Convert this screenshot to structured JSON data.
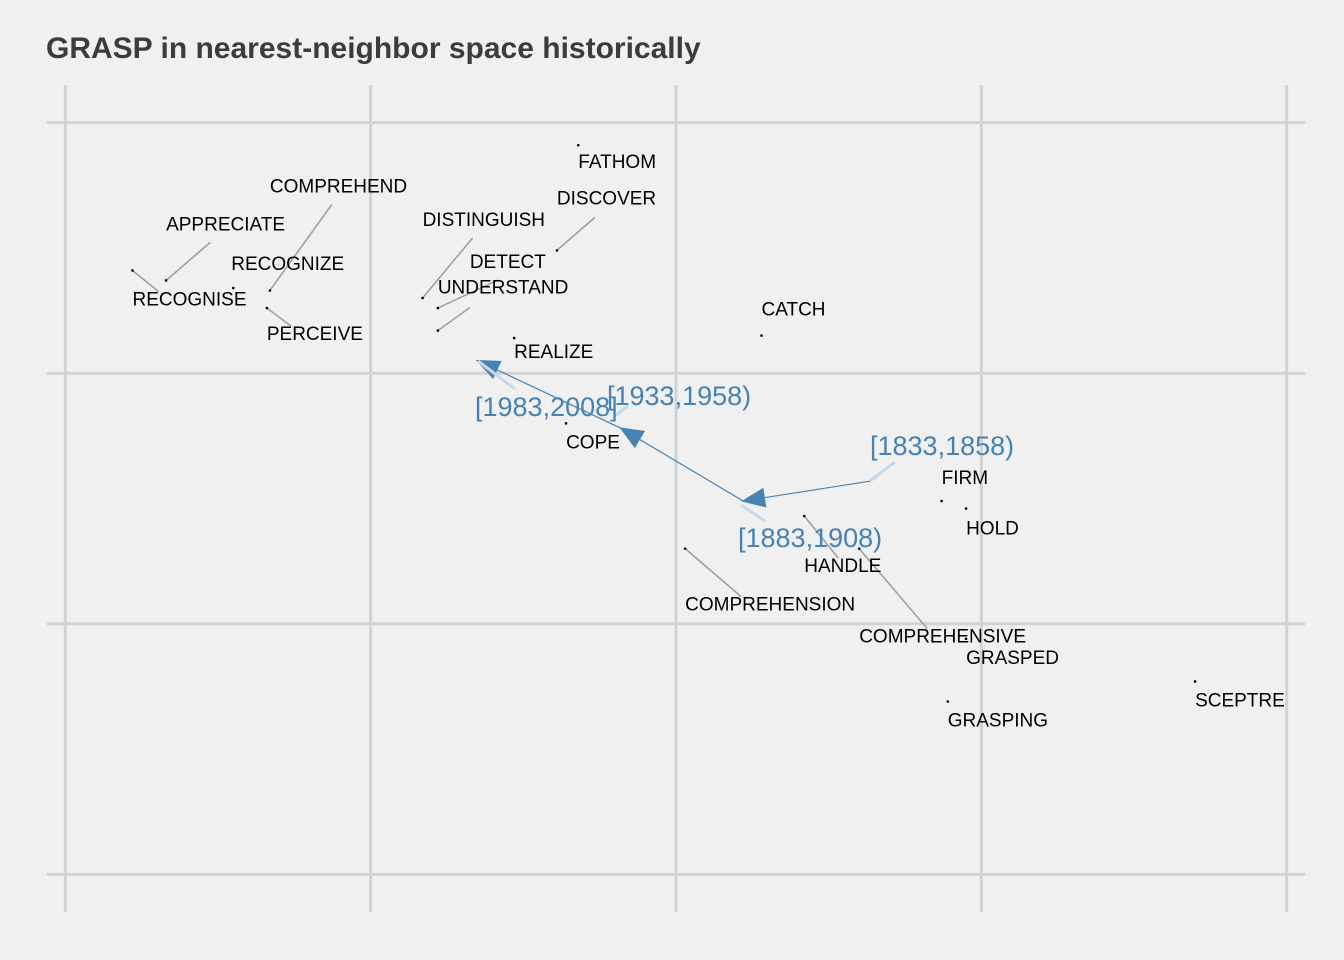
{
  "title": "GRASP in nearest-neighbor space historically",
  "chart_data": {
    "type": "scatter",
    "title": "GRASP in nearest-neighbor space historically",
    "xlabel": "",
    "ylabel": "",
    "xlim": [
      -0.06,
      4.06
    ],
    "ylim": [
      -0.15,
      3.15
    ],
    "grid": true,
    "axis_tick_labels_shown": false,
    "colors": {
      "background": "#f0f0f0",
      "grid": "#d2d2d2",
      "word_text": "#000000",
      "leader_line": "#a0a0a0",
      "trajectory": "#4682b4",
      "era_leader": "#c6d9ea",
      "title": "#3c3c3c"
    },
    "neighbor_words": [
      {
        "word": "FATHOM",
        "x": 1.68,
        "y": 2.91
      },
      {
        "word": "DISCOVER",
        "x": 1.61,
        "y": 2.49
      },
      {
        "word": "COMPREHEND",
        "x": 0.67,
        "y": 2.33
      },
      {
        "word": "APPRECIATE",
        "x": 0.33,
        "y": 2.37
      },
      {
        "word": "DISTINGUISH",
        "x": 1.17,
        "y": 2.3
      },
      {
        "word": "DETECT",
        "x": 1.22,
        "y": 2.26
      },
      {
        "word": "RECOGNIZE",
        "x": 0.55,
        "y": 2.34
      },
      {
        "word": "RECOGNISE",
        "x": 0.22,
        "y": 2.41
      },
      {
        "word": "UNDERSTAND",
        "x": 1.22,
        "y": 2.17
      },
      {
        "word": "PERCEIVE",
        "x": 0.66,
        "y": 2.26
      },
      {
        "word": "REALIZE",
        "x": 1.47,
        "y": 2.14
      },
      {
        "word": "CATCH",
        "x": 2.28,
        "y": 2.15
      },
      {
        "word": "COPE",
        "x": 1.64,
        "y": 1.8
      },
      {
        "word": "FIRM",
        "x": 2.87,
        "y": 1.49
      },
      {
        "word": "HOLD",
        "x": 2.95,
        "y": 1.46
      },
      {
        "word": "HANDLE",
        "x": 2.42,
        "y": 1.43
      },
      {
        "word": "COMPREHENSION",
        "x": 2.03,
        "y": 1.3
      },
      {
        "word": "COMPREHENSIVE",
        "x": 2.6,
        "y": 1.3
      },
      {
        "word": "GRASPED",
        "x": 2.95,
        "y": 0.94
      },
      {
        "word": "GRASPING",
        "x": 2.89,
        "y": 0.69
      },
      {
        "word": "SCEPTRE",
        "x": 3.7,
        "y": 0.77
      }
    ],
    "trajectory": {
      "series_name": "GRASP",
      "points": [
        {
          "period": "[1833,1858)",
          "x": 2.64,
          "y": 1.57
        },
        {
          "period": "[1883,1908)",
          "x": 2.22,
          "y": 1.49
        },
        {
          "period": "[1933,1958)",
          "x": 1.82,
          "y": 1.78
        },
        {
          "period": "[1983,2008]",
          "x": 1.35,
          "y": 2.05
        }
      ]
    }
  }
}
